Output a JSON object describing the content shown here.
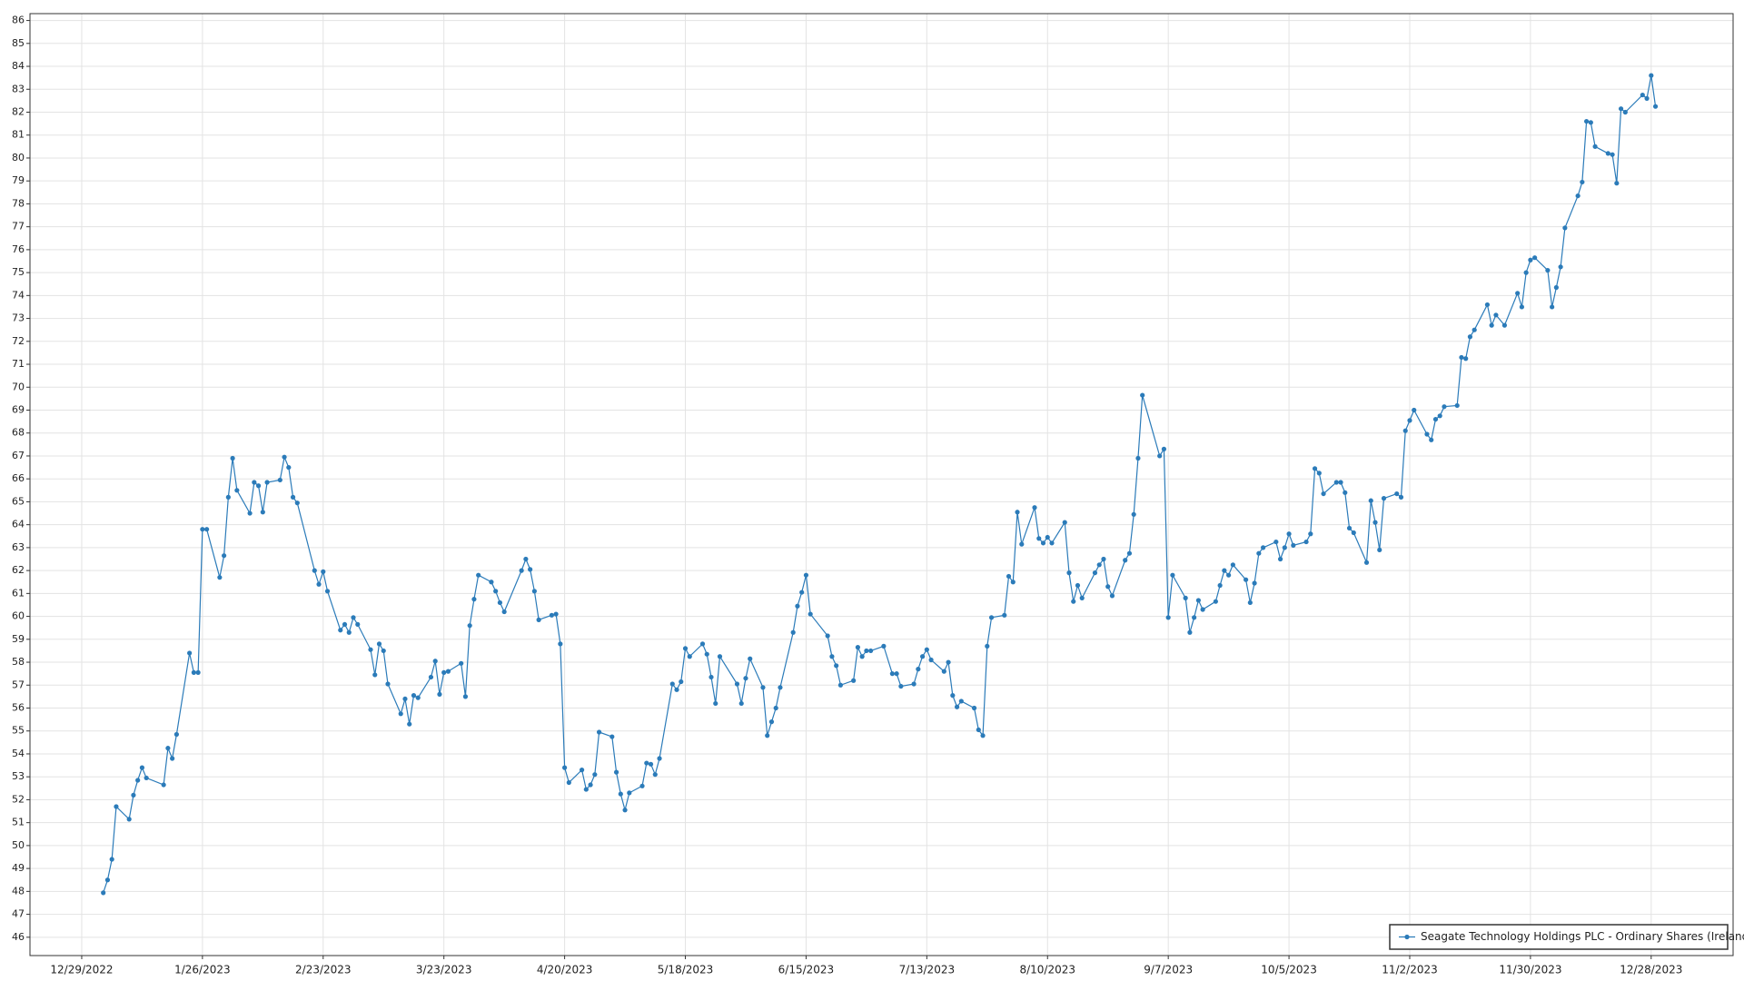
{
  "chart_data": {
    "type": "line",
    "x": [
      "1/3/2023",
      "1/4/2023",
      "1/5/2023",
      "1/6/2023",
      "1/9/2023",
      "1/10/2023",
      "1/11/2023",
      "1/12/2023",
      "1/13/2023",
      "1/17/2023",
      "1/18/2023",
      "1/19/2023",
      "1/20/2023",
      "1/23/2023",
      "1/24/2023",
      "1/25/2023",
      "1/26/2023",
      "1/27/2023",
      "1/30/2023",
      "1/31/2023",
      "2/1/2023",
      "2/2/2023",
      "2/3/2023",
      "2/6/2023",
      "2/7/2023",
      "2/8/2023",
      "2/9/2023",
      "2/10/2023",
      "2/13/2023",
      "2/14/2023",
      "2/15/2023",
      "2/16/2023",
      "2/17/2023",
      "2/21/2023",
      "2/22/2023",
      "2/23/2023",
      "2/24/2023",
      "2/27/2023",
      "2/28/2023",
      "3/1/2023",
      "3/2/2023",
      "3/3/2023",
      "3/6/2023",
      "3/7/2023",
      "3/8/2023",
      "3/9/2023",
      "3/10/2023",
      "3/13/2023",
      "3/14/2023",
      "3/15/2023",
      "3/16/2023",
      "3/17/2023",
      "3/20/2023",
      "3/21/2023",
      "3/22/2023",
      "3/23/2023",
      "3/24/2023",
      "3/27/2023",
      "3/28/2023",
      "3/29/2023",
      "3/30/2023",
      "3/31/2023",
      "4/3/2023",
      "4/4/2023",
      "4/5/2023",
      "4/6/2023",
      "4/10/2023",
      "4/11/2023",
      "4/12/2023",
      "4/13/2023",
      "4/14/2023",
      "4/17/2023",
      "4/18/2023",
      "4/19/2023",
      "4/20/2023",
      "4/21/2023",
      "4/24/2023",
      "4/25/2023",
      "4/26/2023",
      "4/27/2023",
      "4/28/2023",
      "5/1/2023",
      "5/2/2023",
      "5/3/2023",
      "5/4/2023",
      "5/5/2023",
      "5/8/2023",
      "5/9/2023",
      "5/10/2023",
      "5/11/2023",
      "5/12/2023",
      "5/15/2023",
      "5/16/2023",
      "5/17/2023",
      "5/18/2023",
      "5/19/2023",
      "5/22/2023",
      "5/23/2023",
      "5/24/2023",
      "5/25/2023",
      "5/26/2023",
      "5/30/2023",
      "5/31/2023",
      "6/1/2023",
      "6/2/2023",
      "6/5/2023",
      "6/6/2023",
      "6/7/2023",
      "6/8/2023",
      "6/9/2023",
      "6/12/2023",
      "6/13/2023",
      "6/14/2023",
      "6/15/2023",
      "6/16/2023",
      "6/20/2023",
      "6/21/2023",
      "6/22/2023",
      "6/23/2023",
      "6/26/2023",
      "6/27/2023",
      "6/28/2023",
      "6/29/2023",
      "6/30/2023",
      "7/3/2023",
      "7/5/2023",
      "7/6/2023",
      "7/7/2023",
      "7/10/2023",
      "7/11/2023",
      "7/12/2023",
      "7/13/2023",
      "7/14/2023",
      "7/17/2023",
      "7/18/2023",
      "7/19/2023",
      "7/20/2023",
      "7/21/2023",
      "7/24/2023",
      "7/25/2023",
      "7/26/2023",
      "7/27/2023",
      "7/28/2023",
      "7/31/2023",
      "8/1/2023",
      "8/2/2023",
      "8/3/2023",
      "8/4/2023",
      "8/7/2023",
      "8/8/2023",
      "8/9/2023",
      "8/10/2023",
      "8/11/2023",
      "8/14/2023",
      "8/15/2023",
      "8/16/2023",
      "8/17/2023",
      "8/18/2023",
      "8/21/2023",
      "8/22/2023",
      "8/23/2023",
      "8/24/2023",
      "8/25/2023",
      "8/28/2023",
      "8/29/2023",
      "8/30/2023",
      "8/31/2023",
      "9/1/2023",
      "9/5/2023",
      "9/6/2023",
      "9/7/2023",
      "9/8/2023",
      "9/11/2023",
      "9/12/2023",
      "9/13/2023",
      "9/14/2023",
      "9/15/2023",
      "9/18/2023",
      "9/19/2023",
      "9/20/2023",
      "9/21/2023",
      "9/22/2023",
      "9/25/2023",
      "9/26/2023",
      "9/27/2023",
      "9/28/2023",
      "9/29/2023",
      "10/2/2023",
      "10/3/2023",
      "10/4/2023",
      "10/5/2023",
      "10/6/2023",
      "10/9/2023",
      "10/10/2023",
      "10/11/2023",
      "10/12/2023",
      "10/13/2023",
      "10/16/2023",
      "10/17/2023",
      "10/18/2023",
      "10/19/2023",
      "10/20/2023",
      "10/23/2023",
      "10/24/2023",
      "10/25/2023",
      "10/26/2023",
      "10/27/2023",
      "10/30/2023",
      "10/31/2023",
      "11/1/2023",
      "11/2/2023",
      "11/3/2023",
      "11/6/2023",
      "11/7/2023",
      "11/8/2023",
      "11/9/2023",
      "11/10/2023",
      "11/13/2023",
      "11/14/2023",
      "11/15/2023",
      "11/16/2023",
      "11/17/2023",
      "11/20/2023",
      "11/21/2023",
      "11/22/2023",
      "11/24/2023",
      "11/27/2023",
      "11/28/2023",
      "11/29/2023",
      "11/30/2023",
      "12/1/2023",
      "12/4/2023",
      "12/5/2023",
      "12/6/2023",
      "12/7/2023",
      "12/8/2023",
      "12/11/2023",
      "12/12/2023",
      "12/13/2023",
      "12/14/2023",
      "12/15/2023",
      "12/18/2023",
      "12/19/2023",
      "12/20/2023",
      "12/21/2023",
      "12/22/2023",
      "12/26/2023",
      "12/27/2023",
      "12/28/2023",
      "12/29/2023"
    ],
    "series": [
      {
        "name": "Seagate Technology Holdings PLC - Ordinary Shares (Ireland)",
        "color": "#2b7bb9",
        "values": [
          47.94,
          48.5,
          49.4,
          51.7,
          51.15,
          52.2,
          52.85,
          53.4,
          52.95,
          52.65,
          54.25,
          53.8,
          54.85,
          58.4,
          57.55,
          57.55,
          63.8,
          63.8,
          61.7,
          62.65,
          65.2,
          66.9,
          65.5,
          64.5,
          65.85,
          65.7,
          64.55,
          65.85,
          65.95,
          66.95,
          66.5,
          65.2,
          64.95,
          62.0,
          61.4,
          61.95,
          61.1,
          59.4,
          59.65,
          59.3,
          59.95,
          59.65,
          58.55,
          57.45,
          58.8,
          58.5,
          57.05,
          55.75,
          56.4,
          55.3,
          56.55,
          56.45,
          57.35,
          58.05,
          56.6,
          57.55,
          57.6,
          57.95,
          56.5,
          59.6,
          60.75,
          61.8,
          61.5,
          61.1,
          60.6,
          60.2,
          62.0,
          62.5,
          62.05,
          61.1,
          59.85,
          60.05,
          60.1,
          58.8,
          53.4,
          52.75,
          53.3,
          52.45,
          52.65,
          53.1,
          54.95,
          54.75,
          53.2,
          52.25,
          51.55,
          52.3,
          52.6,
          53.6,
          53.55,
          53.1,
          53.8,
          57.05,
          56.8,
          57.15,
          58.6,
          58.25,
          58.8,
          58.35,
          57.35,
          56.2,
          58.25,
          57.05,
          56.2,
          57.3,
          58.15,
          56.9,
          54.8,
          55.4,
          56.0,
          56.9,
          59.3,
          60.45,
          61.05,
          61.8,
          60.1,
          59.15,
          58.25,
          57.85,
          57.0,
          57.2,
          58.65,
          58.25,
          58.5,
          58.5,
          58.7,
          57.5,
          57.5,
          56.95,
          57.05,
          57.7,
          58.25,
          58.55,
          58.1,
          57.6,
          58.0,
          56.55,
          56.05,
          56.3,
          56.0,
          55.05,
          54.8,
          58.7,
          59.95,
          60.05,
          61.75,
          61.5,
          64.55,
          63.15,
          64.75,
          63.4,
          63.2,
          63.45,
          63.2,
          64.1,
          61.9,
          60.65,
          61.35,
          60.8,
          61.9,
          62.25,
          62.5,
          61.3,
          60.9,
          62.45,
          62.75,
          64.45,
          66.9,
          69.65,
          67.0,
          67.3,
          59.95,
          61.8,
          60.8,
          59.3,
          59.95,
          60.7,
          60.3,
          60.65,
          61.35,
          62.0,
          61.8,
          62.25,
          61.6,
          60.6,
          61.45,
          62.75,
          63.0,
          63.25,
          62.5,
          63.0,
          63.6,
          63.1,
          63.25,
          63.6,
          66.45,
          66.25,
          65.35,
          65.85,
          65.85,
          65.4,
          63.85,
          63.65,
          62.35,
          65.05,
          64.1,
          62.9,
          65.15,
          65.35,
          65.2,
          68.1,
          68.55,
          69.0,
          67.95,
          67.7,
          68.6,
          68.75,
          69.15,
          69.2,
          71.3,
          71.25,
          72.2,
          72.5,
          73.6,
          72.7,
          73.15,
          72.7,
          74.1,
          73.5,
          75.0,
          75.55,
          75.65,
          75.1,
          73.5,
          74.35,
          75.25,
          76.95,
          78.35,
          78.95,
          81.6,
          81.55,
          80.5,
          80.2,
          80.15,
          78.9,
          82.15,
          82.0,
          82.75,
          82.6,
          83.6,
          82.25
        ]
      }
    ],
    "xlim": [
      "12/17/2022",
      "1/16/2024"
    ],
    "xticks": [
      "12/29/2022",
      "1/26/2023",
      "2/23/2023",
      "3/23/2023",
      "4/20/2023",
      "5/18/2023",
      "6/15/2023",
      "7/13/2023",
      "8/10/2023",
      "9/7/2023",
      "10/5/2023",
      "11/2/2023",
      "11/30/2023",
      "12/28/2023"
    ],
    "ylim": [
      45.2,
      86.3
    ],
    "yticks": [
      46,
      47,
      48,
      49,
      50,
      51,
      52,
      53,
      54,
      55,
      56,
      57,
      58,
      59,
      60,
      61,
      62,
      63,
      64,
      65,
      66,
      67,
      68,
      69,
      70,
      71,
      72,
      73,
      74,
      75,
      76,
      77,
      78,
      79,
      80,
      81,
      82,
      83,
      84,
      85,
      86
    ],
    "grid": true,
    "legend": "bottom-right"
  }
}
